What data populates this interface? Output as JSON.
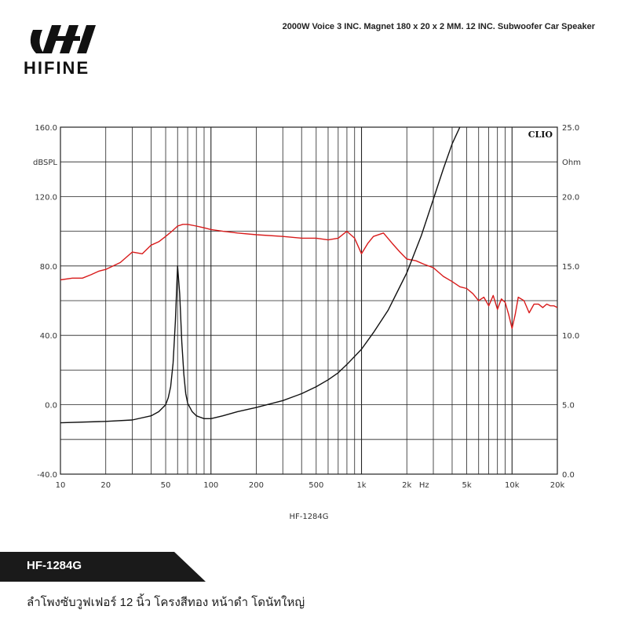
{
  "brand": {
    "name": "HIFINE",
    "logo_icon": "hifine-logo-icon"
  },
  "header": {
    "title": "2000W Voice 3 INC. Magnet 180 x 20 x 2 MM. 12 INC. Subwoofer Car Speaker"
  },
  "chart_data": {
    "type": "line",
    "source_label": "CLIO",
    "caption": "HF-1284G",
    "xscale": "log",
    "xlim": [
      10,
      20000
    ],
    "x_tick_labels": [
      "10",
      "20",
      "50",
      "100",
      "200",
      "500",
      "1k",
      "2k",
      "5k",
      "10k",
      "20k"
    ],
    "x_unit_label": "Hz",
    "y_left": {
      "ylim": [
        -40,
        160
      ],
      "tick_labels": [
        "160.0",
        "120.0",
        "80.0",
        "40.0",
        "0.0",
        "-40.0"
      ],
      "unit": "dBSPL"
    },
    "y_right": {
      "ylim": [
        0,
        25
      ],
      "tick_labels": [
        "25.0",
        "20.0",
        "15.0",
        "10.0",
        "5.0",
        "0.0"
      ],
      "unit": "Ohm"
    },
    "grid": true,
    "series": [
      {
        "color": "#d81b1b",
        "axis": "left",
        "x": [
          10,
          12,
          14,
          16,
          18,
          20,
          25,
          30,
          35,
          40,
          45,
          50,
          55,
          60,
          65,
          70,
          80,
          90,
          100,
          120,
          150,
          200,
          300,
          400,
          500,
          600,
          700,
          800,
          900,
          1000,
          1100,
          1200,
          1400,
          1600,
          1800,
          2000,
          2300,
          2600,
          3000,
          3500,
          4000,
          4500,
          5000,
          5500,
          6000,
          6500,
          7000,
          7500,
          8000,
          8500,
          9000,
          9500,
          10000,
          10500,
          11000,
          12000,
          13000,
          14000,
          15000,
          16000,
          17000,
          18000,
          19000,
          20000
        ],
        "y": [
          72,
          73,
          73,
          75,
          77,
          78,
          82,
          88,
          87,
          92,
          94,
          97,
          100,
          103,
          104,
          104,
          103,
          102,
          101,
          100,
          99,
          98,
          97,
          96,
          96,
          95,
          96,
          100,
          96,
          87,
          93,
          97,
          99,
          93,
          88,
          84,
          83,
          81,
          79,
          74,
          71,
          68,
          67,
          64,
          60,
          62,
          57,
          63,
          55,
          61,
          59,
          52,
          44,
          52,
          62,
          60,
          53,
          58,
          58,
          56,
          58,
          57,
          57,
          56
        ]
      },
      {
        "color": "#111111",
        "axis": "right",
        "x": [
          10,
          20,
          30,
          40,
          45,
          50,
          52,
          54,
          56,
          58,
          60,
          62,
          64,
          66,
          68,
          70,
          75,
          80,
          90,
          100,
          120,
          150,
          200,
          300,
          400,
          500,
          600,
          700,
          800,
          1000,
          1200,
          1500,
          2000,
          2500,
          3000,
          3500,
          4000,
          4500,
          5000
        ],
        "y": [
          3.7,
          3.8,
          3.9,
          4.2,
          4.5,
          5.0,
          5.5,
          6.3,
          8.0,
          11.0,
          15.0,
          13.0,
          9.5,
          7.2,
          5.8,
          5.1,
          4.5,
          4.2,
          4.0,
          4.0,
          4.2,
          4.5,
          4.8,
          5.3,
          5.8,
          6.3,
          6.8,
          7.3,
          7.9,
          9.0,
          10.2,
          11.8,
          14.5,
          17.2,
          19.8,
          22.0,
          23.8,
          25.0,
          25.8
        ]
      }
    ]
  },
  "footer": {
    "model": "HF-1284G",
    "description": "ลำโพงซับวูฟเฟอร์ 12 นิ้ว โครงสีทอง หน้าดำ โดนัทใหญ่"
  }
}
